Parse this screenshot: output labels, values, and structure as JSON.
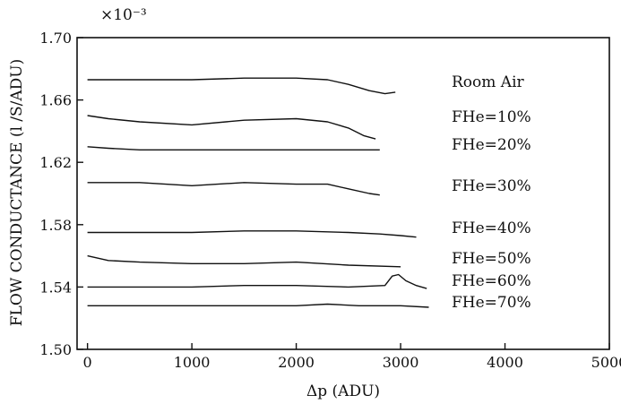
{
  "chart_data": {
    "type": "line",
    "title": "",
    "xlabel": "Δp (ADU)",
    "ylabel": "FLOW CONDUCTANCE (l /S/ADU)",
    "y_multiplier": "×10⁻³",
    "xlim": [
      -100,
      5000
    ],
    "ylim": [
      1.5,
      1.7
    ],
    "x_ticks": [
      "0",
      "1000",
      "2000",
      "3000",
      "4000",
      "5000"
    ],
    "y_ticks": [
      "1.50",
      "1.54",
      "1.58",
      "1.62",
      "1.66",
      "1.70"
    ],
    "grid": false,
    "legend": "right-inline",
    "series": [
      {
        "name": "Room Air",
        "x": [
          0,
          500,
          1000,
          1500,
          2000,
          2300,
          2500,
          2700,
          2850,
          2950
        ],
        "y": [
          1.673,
          1.673,
          1.673,
          1.674,
          1.674,
          1.673,
          1.67,
          1.666,
          1.664,
          1.665
        ]
      },
      {
        "name": "FHe=10%",
        "x": [
          0,
          200,
          500,
          1000,
          1500,
          2000,
          2300,
          2500,
          2650,
          2760
        ],
        "y": [
          1.65,
          1.648,
          1.646,
          1.644,
          1.647,
          1.648,
          1.646,
          1.642,
          1.637,
          1.635
        ]
      },
      {
        "name": "FHe=20%",
        "x": [
          0,
          200,
          500,
          1000,
          1500,
          2000,
          2500,
          2800
        ],
        "y": [
          1.63,
          1.629,
          1.628,
          1.628,
          1.628,
          1.628,
          1.628,
          1.628
        ]
      },
      {
        "name": "FHe=30%",
        "x": [
          0,
          500,
          1000,
          1500,
          2000,
          2300,
          2500,
          2700,
          2800
        ],
        "y": [
          1.607,
          1.607,
          1.605,
          1.607,
          1.606,
          1.606,
          1.603,
          1.6,
          1.599
        ]
      },
      {
        "name": "FHe=40%",
        "x": [
          0,
          500,
          1000,
          1500,
          2000,
          2500,
          2800,
          3000,
          3150
        ],
        "y": [
          1.575,
          1.575,
          1.575,
          1.576,
          1.576,
          1.575,
          1.574,
          1.573,
          1.572
        ]
      },
      {
        "name": "FHe=50%",
        "x": [
          0,
          200,
          500,
          1000,
          1500,
          2000,
          2500,
          3000
        ],
        "y": [
          1.56,
          1.557,
          1.556,
          1.555,
          1.555,
          1.556,
          1.554,
          1.553
        ]
      },
      {
        "name": "FHe=60%",
        "x": [
          0,
          500,
          1000,
          1500,
          2000,
          2500,
          2850,
          2920,
          2980,
          3050,
          3150,
          3250
        ],
        "y": [
          1.54,
          1.54,
          1.54,
          1.541,
          1.541,
          1.54,
          1.541,
          1.547,
          1.548,
          1.544,
          1.541,
          1.539
        ]
      },
      {
        "name": "FHe=70%",
        "x": [
          0,
          500,
          1000,
          1500,
          2000,
          2300,
          2600,
          3000,
          3270
        ],
        "y": [
          1.528,
          1.528,
          1.528,
          1.528,
          1.528,
          1.529,
          1.528,
          1.528,
          1.527
        ]
      }
    ]
  }
}
